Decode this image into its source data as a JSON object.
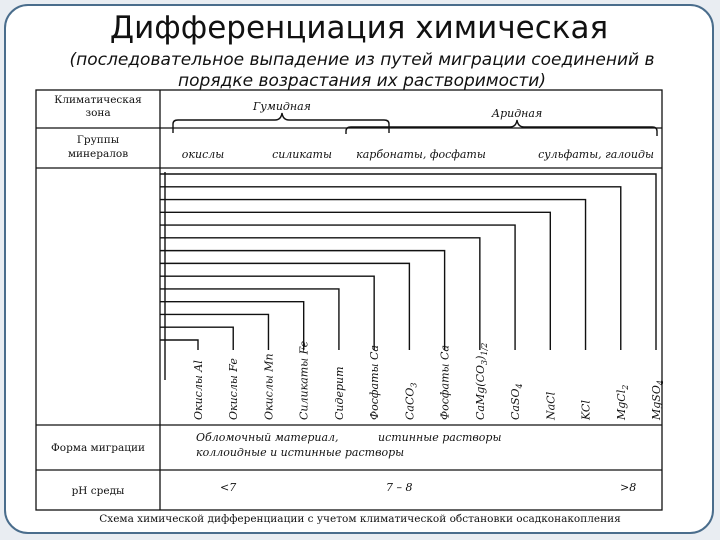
{
  "title": "Дифференциация химическая",
  "subtitle": "(последовательное выпадение из путей миграции соединений в порядке возрастания их растворимости)",
  "scheme": {
    "rows": {
      "climate": [
        "Климатическая",
        "зона"
      ],
      "groups": [
        "Группы",
        "минералов"
      ],
      "migration": "Форма миграции",
      "ph": "рН среды"
    },
    "zones": {
      "humid": "Гумидная",
      "arid": "Аридная"
    },
    "groups": [
      "окислы",
      "силикаты",
      "карбонаты, фосфаты",
      "сульфаты, галоиды"
    ],
    "compounds": [
      {
        "base": "Окислы Al"
      },
      {
        "base": "Окислы Fe"
      },
      {
        "base": "Окислы Mn"
      },
      {
        "base": "Силикаты Fe"
      },
      {
        "base": "Сидерит"
      },
      {
        "base": "Фосфаты Ca"
      },
      {
        "base": "CaCO",
        "sub": "3"
      },
      {
        "base": "Фосфаты Ca"
      },
      {
        "base": "CaMg(CO",
        "sub": "3",
        "tail": ")",
        "sub2": "1/2"
      },
      {
        "base": "CaSO",
        "sub": "4"
      },
      {
        "base": "NaCl"
      },
      {
        "base": "KCl"
      },
      {
        "base": "MgCl",
        "sub": "2"
      },
      {
        "base": "MgSO",
        "sub": "4"
      }
    ],
    "migration": [
      "Обломочный материал,",
      "истинные растворы",
      "коллоидные и истинные растворы"
    ],
    "ph": [
      "<7",
      "7 – 8",
      ">8"
    ],
    "caption": "Схема химической дифференциации с учетом климатической обстановки осадконакопления"
  }
}
